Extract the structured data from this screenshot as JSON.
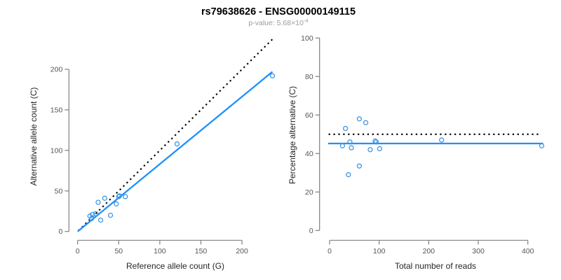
{
  "header": {
    "title": "rs79638626 - ENSG00000149115",
    "p_value_prefix": "p-value: 5.68×10",
    "p_value_exponent": "-4"
  },
  "colors": {
    "fit_line": "#1E90FF",
    "identity_line": "#000000",
    "point_stroke": "#3D97E2",
    "axis_line": "#808080",
    "tick_label": "#555555",
    "axis_title": "#262626",
    "title": "#000000",
    "subtitle": "#9B9B9B",
    "background": "#FFFFFF"
  },
  "chart_data": [
    {
      "type": "scatter",
      "panel": "left",
      "title": "",
      "xlabel": "Reference allele count (G)",
      "ylabel": "Alternative allele count (C)",
      "xlim": [
        0,
        240
      ],
      "ylim": [
        0,
        205
      ],
      "xticks": [
        0,
        50,
        100,
        150,
        200
      ],
      "yticks": [
        0,
        50,
        100,
        150,
        200
      ],
      "grid": false,
      "legend": "none",
      "point_style": "open-circle",
      "points": [
        [
          15,
          19
        ],
        [
          17,
          16
        ],
        [
          18,
          21
        ],
        [
          22,
          22
        ],
        [
          25,
          36
        ],
        [
          28,
          14
        ],
        [
          33,
          41
        ],
        [
          40,
          20
        ],
        [
          47,
          34
        ],
        [
          50,
          43
        ],
        [
          51,
          44
        ],
        [
          58,
          43
        ],
        [
          121,
          108
        ],
        [
          237,
          192
        ]
      ],
      "lines": [
        {
          "name": "identity-line",
          "style": "dotted",
          "color": "#000000",
          "x1": 1,
          "y1": 1,
          "x2": 239,
          "y2": 239
        },
        {
          "name": "fit-line",
          "style": "solid",
          "color": "#1E90FF",
          "x1": 0,
          "y1": 0,
          "x2": 237,
          "y2": 197
        }
      ]
    },
    {
      "type": "scatter",
      "panel": "right",
      "title": "",
      "xlabel": "Total number of reads",
      "ylabel": "Percentage alternative (C)",
      "xlim": [
        0,
        433
      ],
      "ylim": [
        0,
        100
      ],
      "xticks": [
        0,
        100,
        200,
        300,
        400
      ],
      "yticks": [
        0,
        20,
        40,
        60,
        80,
        100
      ],
      "grid": false,
      "legend": "none",
      "point_style": "open-circle",
      "points": [
        [
          26,
          44
        ],
        [
          32,
          53
        ],
        [
          38,
          29
        ],
        [
          41,
          46
        ],
        [
          44,
          43
        ],
        [
          60,
          58
        ],
        [
          60,
          33.5
        ],
        [
          73,
          56
        ],
        [
          82,
          42
        ],
        [
          92,
          46.5
        ],
        [
          94,
          46
        ],
        [
          101,
          42.5
        ],
        [
          226,
          47
        ],
        [
          428,
          44
        ]
      ],
      "lines": [
        {
          "name": "expected-50-line",
          "style": "dotted",
          "color": "#000000",
          "x1": -2,
          "y1": 50,
          "x2": 422,
          "y2": 50
        },
        {
          "name": "fitted-mean-line",
          "style": "solid",
          "color": "#1E90FF",
          "x1": -3,
          "y1": 45.2,
          "x2": 431,
          "y2": 45.2
        }
      ]
    }
  ]
}
